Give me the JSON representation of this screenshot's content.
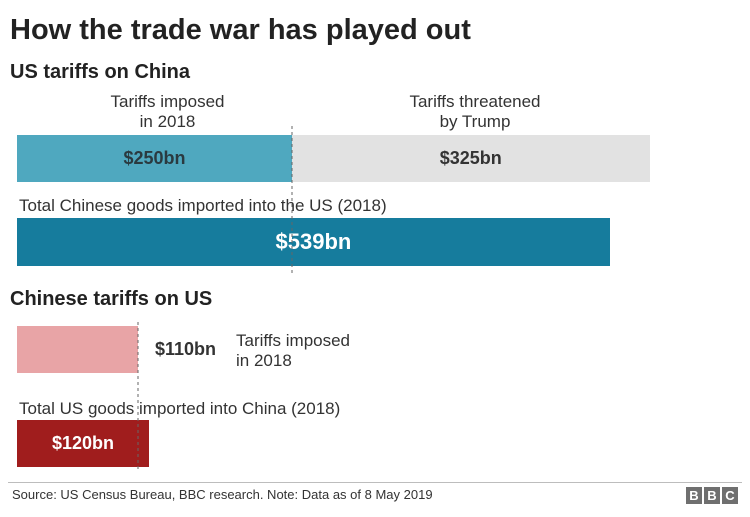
{
  "chart_data": {
    "type": "bar",
    "title": "How the trade war has played out",
    "sections": [
      {
        "heading": "US tariffs on China",
        "imposed_label_line1": "Tariffs imposed",
        "imposed_label_line2": "in 2018",
        "threatened_label_line1": "Tariffs threatened",
        "threatened_label_line2": "by Trump",
        "imposed_value": 250,
        "imposed_text": "$250bn",
        "threatened_value": 325,
        "threatened_text": "$325bn",
        "total_label": "Total Chinese goods imported into the US (2018)",
        "total_value": 539,
        "total_text": "$539bn"
      },
      {
        "heading": "Chinese tariffs on US",
        "imposed_value": 110,
        "imposed_text": "$110bn",
        "imposed_label_line1": "Tariffs imposed",
        "imposed_label_line2": "in 2018",
        "total_label": "Total US goods imported into China (2018)",
        "total_value": 120,
        "total_text": "$120bn"
      }
    ],
    "units": "$bn"
  },
  "footer": {
    "source": "Source: US Census Bureau, BBC research. Note: Data as of 8 May 2019",
    "logo_letters": [
      "B",
      "B",
      "C"
    ]
  },
  "colors": {
    "us_imposed": "#4fa8bf",
    "us_threatened": "#e2e2e2",
    "us_total": "#167c9d",
    "china_imposed": "#e8a4a6",
    "china_total": "#a01d1d",
    "dashed": "#666666"
  }
}
